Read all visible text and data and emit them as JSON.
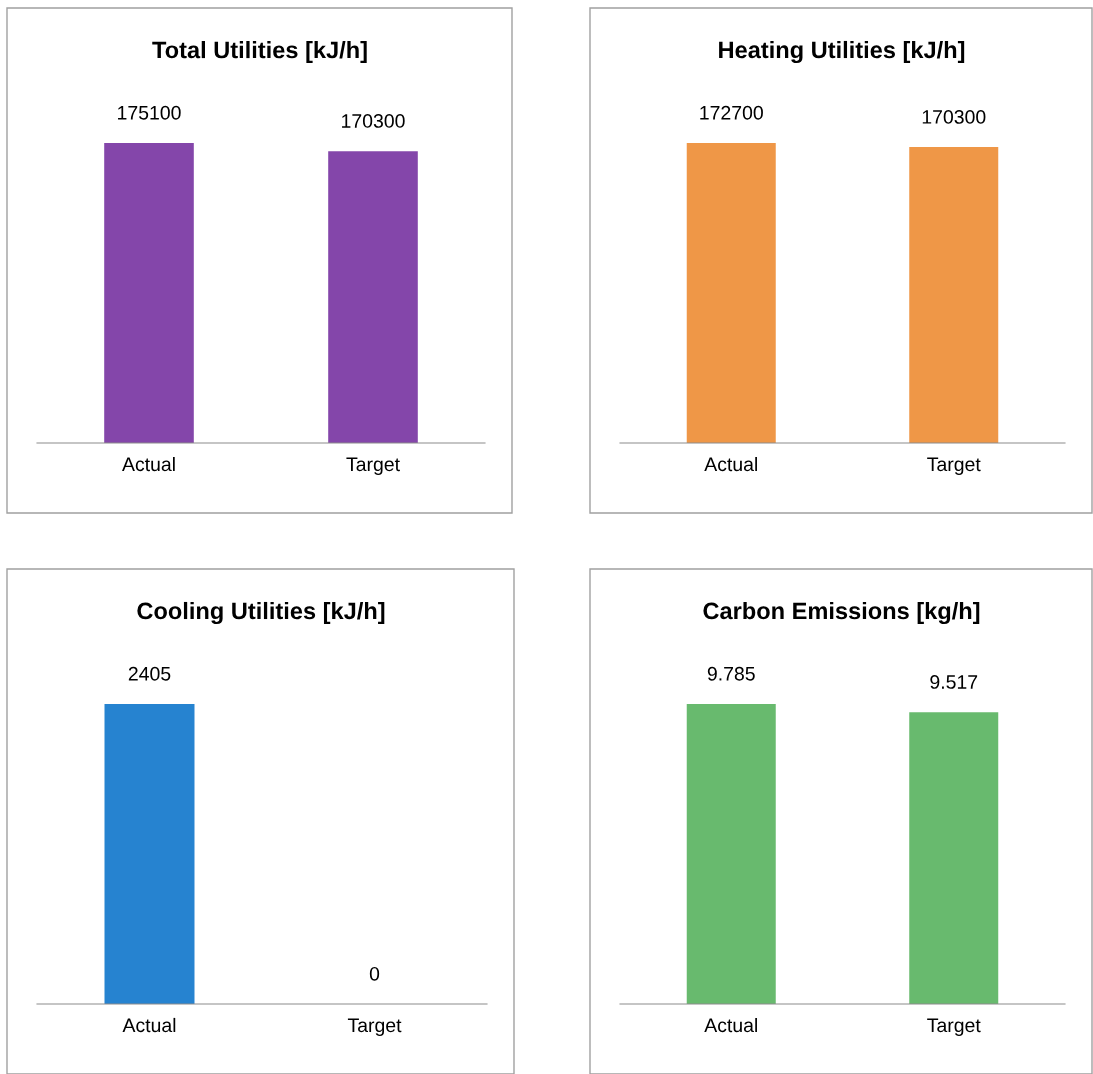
{
  "chart_data": [
    {
      "type": "bar",
      "title": "Total Utilities [kJ/h]",
      "categories": [
        "Actual",
        "Target"
      ],
      "values": [
        175100,
        170300
      ],
      "color": "#8446aa",
      "data_labels": true,
      "grid": false,
      "legend": false,
      "tick_labels": "x"
    },
    {
      "type": "bar",
      "title": "Heating Utilities [kJ/h]",
      "categories": [
        "Actual",
        "Target"
      ],
      "values": [
        172700,
        170300
      ],
      "color": "#ef9747",
      "data_labels": true,
      "grid": false,
      "legend": false,
      "tick_labels": "x"
    },
    {
      "type": "bar",
      "title": "Cooling Utilities [kJ/h]",
      "categories": [
        "Actual",
        "Target"
      ],
      "values": [
        2405,
        0
      ],
      "color": "#2683d0",
      "data_labels": true,
      "grid": false,
      "legend": false,
      "tick_labels": "x"
    },
    {
      "type": "bar",
      "title": "Carbon Emissions [kg/h]",
      "categories": [
        "Actual",
        "Target"
      ],
      "values": [
        9.785,
        9.517
      ],
      "color": "#68ba6e",
      "data_labels": true,
      "grid": false,
      "legend": false,
      "tick_labels": "x"
    }
  ]
}
